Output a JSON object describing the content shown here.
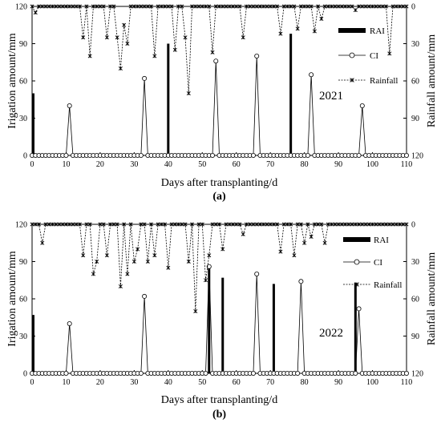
{
  "chart_data": [
    {
      "panel_label": "(a)",
      "type": "bar+line",
      "year_label": "2021",
      "xlabel": "Days after transplanting/d",
      "ylabel": "Irigation amount/mm",
      "y2label": "Rainfall amount/mm",
      "xlim": [
        0,
        110
      ],
      "ylim": [
        0,
        120
      ],
      "y2lim": [
        120,
        0
      ],
      "x_ticks": [
        0,
        10,
        20,
        30,
        40,
        50,
        60,
        70,
        80,
        90,
        100,
        110
      ],
      "y_ticks": [
        0,
        30,
        60,
        90,
        120
      ],
      "y2_ticks": [
        0,
        30,
        60,
        90,
        120
      ],
      "legend": [
        "RAI",
        "CI",
        "Rainfall"
      ],
      "legend_position": "top-right",
      "series": [
        {
          "name": "RAI",
          "type": "bar",
          "x": [
            0,
            40,
            76
          ],
          "values": [
            50,
            90,
            98
          ]
        },
        {
          "name": "CI",
          "type": "line",
          "marker": "circle",
          "x": [
            11,
            33,
            54,
            66,
            82,
            97
          ],
          "values": [
            40,
            62,
            76,
            80,
            65,
            40
          ]
        },
        {
          "name": "Rainfall",
          "type": "line",
          "marker": "star",
          "axis": "right",
          "x": [
            1,
            15,
            17,
            22,
            25,
            26,
            27,
            28,
            36,
            42,
            45,
            46,
            53,
            62,
            73,
            78,
            83,
            85,
            95,
            105
          ],
          "values": [
            5,
            25,
            40,
            25,
            25,
            50,
            15,
            30,
            40,
            35,
            25,
            70,
            37,
            25,
            22,
            18,
            20,
            10,
            3,
            38
          ]
        }
      ]
    },
    {
      "panel_label": "(b)",
      "type": "bar+line",
      "year_label": "2022",
      "xlabel": "Days after transplanting/d",
      "ylabel": "Irigation amount/mm",
      "y2label": "Rainfall amount/mm",
      "xlim": [
        0,
        110
      ],
      "ylim": [
        0,
        120
      ],
      "y2lim": [
        120,
        0
      ],
      "x_ticks": [
        0,
        10,
        20,
        30,
        40,
        50,
        60,
        70,
        80,
        90,
        100,
        110
      ],
      "y_ticks": [
        0,
        30,
        60,
        90,
        120
      ],
      "y2_ticks": [
        0,
        30,
        60,
        90,
        120
      ],
      "legend": [
        "RAI",
        "CI",
        "Rainfall"
      ],
      "legend_position": "top-right",
      "series": [
        {
          "name": "RAI",
          "type": "bar",
          "x": [
            0,
            52,
            56,
            71,
            95
          ],
          "values": [
            47,
            85,
            77,
            72,
            73
          ]
        },
        {
          "name": "CI",
          "type": "line",
          "marker": "circle",
          "x": [
            11,
            33,
            52,
            66,
            79,
            96
          ],
          "values": [
            40,
            62,
            86,
            80,
            74,
            52
          ]
        },
        {
          "name": "Rainfall",
          "type": "line",
          "marker": "star",
          "axis": "right",
          "x": [
            3,
            15,
            18,
            19,
            22,
            26,
            28,
            30,
            31,
            34,
            36,
            40,
            46,
            48,
            51,
            52,
            56,
            62,
            73,
            77,
            80,
            82,
            86
          ],
          "values": [
            15,
            25,
            40,
            30,
            25,
            50,
            40,
            30,
            20,
            30,
            25,
            35,
            30,
            70,
            45,
            25,
            20,
            8,
            22,
            25,
            15,
            10,
            15
          ]
        }
      ]
    }
  ]
}
